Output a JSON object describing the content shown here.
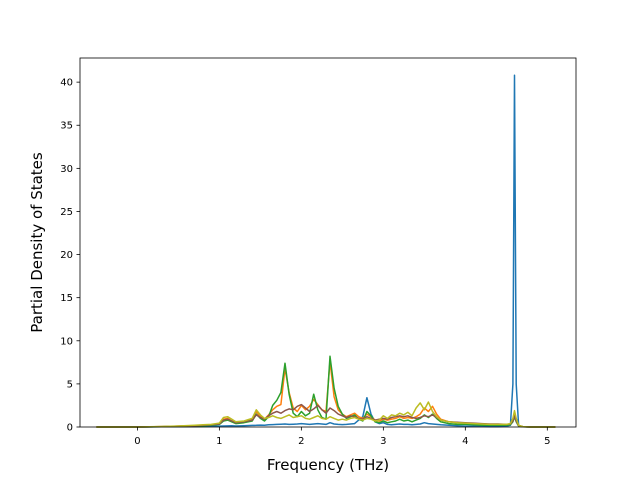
{
  "chart_data": {
    "type": "line",
    "title": "",
    "xlabel": "Frequency (THz)",
    "ylabel": "Partial Density of States",
    "xlim": [
      -0.7,
      5.35
    ],
    "ylim": [
      0,
      42.8
    ],
    "xticks": [
      0,
      1,
      2,
      3,
      4,
      5
    ],
    "xtick_labels": [
      "0",
      "1",
      "2",
      "3",
      "4",
      "5"
    ],
    "yticks": [
      0,
      5,
      10,
      15,
      20,
      25,
      30,
      35,
      40
    ],
    "ytick_labels": [
      "0",
      "5",
      "10",
      "15",
      "20",
      "25",
      "30",
      "35",
      "40"
    ],
    "grid": false,
    "legend": "none",
    "x": [
      -0.5,
      -0.2,
      0.0,
      0.3,
      0.5,
      0.7,
      0.8,
      0.9,
      1.0,
      1.05,
      1.1,
      1.15,
      1.2,
      1.3,
      1.4,
      1.45,
      1.5,
      1.55,
      1.6,
      1.65,
      1.7,
      1.75,
      1.8,
      1.85,
      1.9,
      1.95,
      2.0,
      2.05,
      2.1,
      2.15,
      2.2,
      2.25,
      2.3,
      2.35,
      2.4,
      2.45,
      2.5,
      2.55,
      2.6,
      2.65,
      2.7,
      2.75,
      2.8,
      2.85,
      2.9,
      2.95,
      3.0,
      3.05,
      3.1,
      3.15,
      3.2,
      3.25,
      3.3,
      3.35,
      3.4,
      3.45,
      3.5,
      3.55,
      3.6,
      3.65,
      3.7,
      3.8,
      3.9,
      4.0,
      4.1,
      4.2,
      4.3,
      4.4,
      4.5,
      4.55,
      4.58,
      4.6,
      4.62,
      4.65,
      4.7,
      4.8,
      5.0,
      5.1
    ],
    "series": [
      {
        "color": "#1f77b4",
        "values": [
          0,
          0,
          0,
          0.02,
          0.03,
          0.05,
          0.07,
          0.08,
          0.1,
          0.12,
          0.13,
          0.14,
          0.12,
          0.15,
          0.18,
          0.2,
          0.22,
          0.2,
          0.25,
          0.28,
          0.3,
          0.32,
          0.35,
          0.3,
          0.32,
          0.35,
          0.4,
          0.35,
          0.3,
          0.35,
          0.4,
          0.35,
          0.3,
          0.5,
          0.35,
          0.3,
          0.28,
          0.3,
          0.35,
          0.4,
          0.8,
          1.2,
          3.4,
          1.5,
          0.6,
          0.4,
          0.5,
          0.3,
          0.25,
          0.3,
          0.35,
          0.3,
          0.3,
          0.25,
          0.3,
          0.35,
          0.5,
          0.4,
          0.35,
          0.3,
          0.25,
          0.2,
          0.15,
          0.1,
          0.1,
          0.1,
          0.05,
          0.05,
          0.1,
          0.2,
          5.0,
          40.8,
          5.0,
          0.2,
          0.05,
          0,
          0,
          0
        ]
      },
      {
        "color": "#ff7f0e",
        "values": [
          0,
          0,
          0,
          0.05,
          0.1,
          0.15,
          0.2,
          0.25,
          0.4,
          0.9,
          1.0,
          0.7,
          0.5,
          0.6,
          0.9,
          1.8,
          1.2,
          0.9,
          1.4,
          2.0,
          2.4,
          2.6,
          6.8,
          4.0,
          2.2,
          1.8,
          2.5,
          2.0,
          2.4,
          3.2,
          2.6,
          2.0,
          1.8,
          7.6,
          3.5,
          2.0,
          1.5,
          1.2,
          1.4,
          1.6,
          1.2,
          1.0,
          1.5,
          1.2,
          0.8,
          0.7,
          0.9,
          0.8,
          0.9,
          1.0,
          1.2,
          1.0,
          1.1,
          1.0,
          1.2,
          1.5,
          2.2,
          1.8,
          2.4,
          1.5,
          0.9,
          0.6,
          0.5,
          0.45,
          0.4,
          0.35,
          0.3,
          0.3,
          0.25,
          0.3,
          0.8,
          1.6,
          0.8,
          0.2,
          0.05,
          0,
          0,
          0
        ]
      },
      {
        "color": "#2ca02c",
        "values": [
          0,
          0,
          0,
          0.03,
          0.08,
          0.12,
          0.15,
          0.2,
          0.3,
          0.7,
          0.8,
          0.6,
          0.4,
          0.5,
          0.7,
          1.5,
          1.0,
          0.7,
          1.2,
          2.5,
          3.1,
          4.0,
          7.4,
          3.8,
          1.6,
          1.2,
          1.8,
          1.3,
          1.6,
          3.8,
          2.0,
          1.1,
          0.9,
          8.2,
          4.5,
          2.4,
          1.5,
          1.0,
          1.2,
          1.4,
          0.9,
          0.7,
          1.8,
          1.3,
          0.6,
          0.5,
          0.7,
          0.5,
          0.6,
          0.7,
          0.9,
          0.7,
          0.8,
          0.6,
          0.8,
          1.0,
          1.4,
          1.1,
          1.5,
          1.0,
          0.6,
          0.4,
          0.3,
          0.3,
          0.25,
          0.2,
          0.2,
          0.2,
          0.2,
          0.25,
          0.6,
          1.2,
          0.6,
          0.1,
          0.03,
          0,
          0,
          0
        ]
      },
      {
        "color": "#8c564b",
        "values": [
          0,
          0,
          0,
          0.05,
          0.1,
          0.15,
          0.2,
          0.25,
          0.35,
          0.8,
          0.9,
          0.7,
          0.5,
          0.6,
          0.8,
          1.4,
          1.1,
          0.9,
          1.3,
          1.6,
          1.8,
          1.6,
          1.9,
          2.1,
          2.0,
          2.4,
          2.6,
          2.2,
          1.8,
          2.1,
          2.5,
          2.0,
          1.6,
          2.2,
          1.9,
          1.5,
          1.3,
          1.1,
          1.3,
          1.2,
          1.0,
          0.9,
          1.2,
          1.0,
          0.8,
          0.9,
          1.0,
          0.9,
          1.1,
          1.2,
          1.3,
          1.2,
          1.3,
          1.1,
          1.0,
          1.1,
          1.3,
          1.2,
          1.4,
          1.1,
          0.8,
          0.6,
          0.55,
          0.5,
          0.45,
          0.4,
          0.35,
          0.35,
          0.3,
          0.35,
          0.7,
          1.3,
          0.7,
          0.15,
          0.04,
          0,
          0,
          0
        ]
      },
      {
        "color": "#bcbd22",
        "values": [
          0,
          0,
          0,
          0.06,
          0.12,
          0.2,
          0.25,
          0.3,
          0.45,
          1.1,
          1.2,
          0.9,
          0.6,
          0.7,
          1.0,
          2.0,
          1.4,
          1.0,
          1.1,
          1.3,
          1.1,
          1.0,
          1.2,
          1.4,
          1.1,
          1.2,
          1.3,
          1.0,
          0.9,
          1.1,
          1.3,
          1.0,
          0.9,
          1.2,
          1.0,
          0.8,
          0.9,
          0.8,
          1.0,
          1.1,
          0.9,
          0.8,
          1.0,
          0.9,
          0.7,
          0.8,
          1.3,
          1.0,
          1.4,
          1.3,
          1.6,
          1.4,
          1.7,
          1.3,
          2.2,
          2.8,
          2.0,
          2.9,
          1.8,
          1.2,
          0.8,
          0.6,
          0.5,
          0.45,
          0.4,
          0.35,
          0.3,
          0.3,
          0.3,
          0.4,
          1.0,
          1.9,
          1.0,
          0.2,
          0.05,
          0,
          0,
          0
        ]
      }
    ]
  }
}
